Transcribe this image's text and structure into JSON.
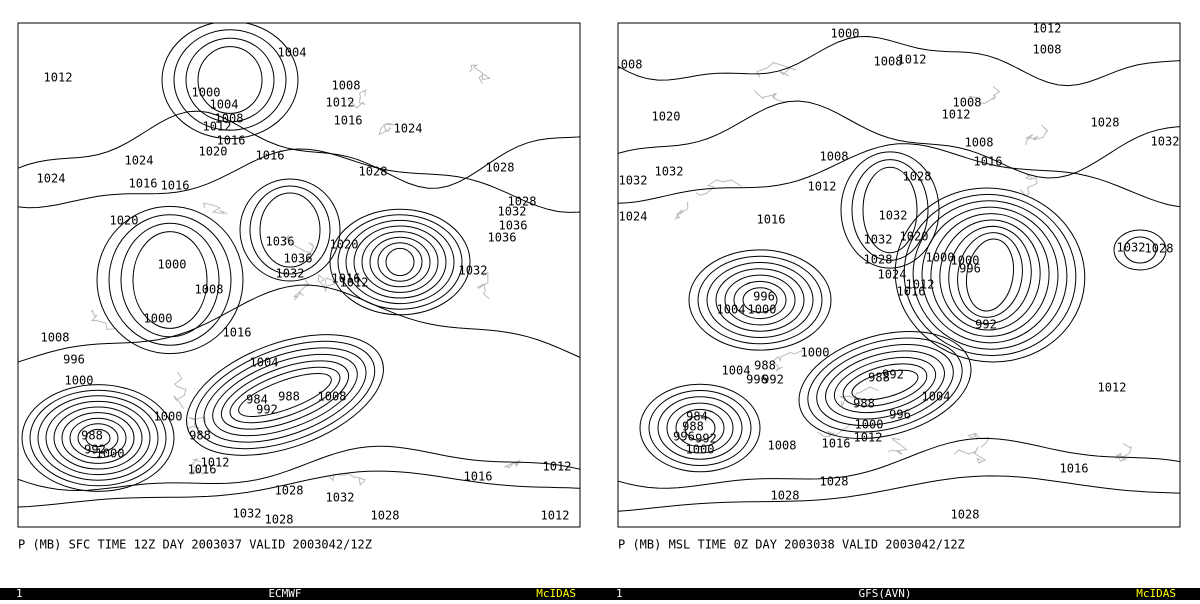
{
  "panels": [
    {
      "caption": "P (MB) SFC TIME 12Z DAY 2003037 VALID 2003042/12Z",
      "status_bar": {
        "frame": "1",
        "model": "ECMWF",
        "brand": "McIDAS"
      },
      "contour_labels": [
        1004,
        1012,
        1000,
        1008,
        1004,
        1012,
        1008,
        1012,
        1016,
        1016,
        1024,
        1020,
        1016,
        1024,
        1028,
        1028,
        1024,
        1016,
        1016,
        1028,
        1032,
        1020,
        1036,
        1036,
        1036,
        1020,
        1036,
        1000,
        1032,
        1032,
        1016,
        1012,
        1008,
        1000,
        1016,
        1008,
        1004,
        996,
        1000,
        988,
        984,
        1008,
        992,
        1000,
        988,
        988,
        992,
        1000,
        1012,
        1016,
        1012,
        1016,
        1028,
        1032,
        1032,
        1028,
        1028,
        1012
      ]
    },
    {
      "caption": "P (MB) MSL TIME 0Z DAY 2003038 VALID 2003042/12Z",
      "status_bar": {
        "frame": "1",
        "model": "GFS(AVN)",
        "brand": "McIDAS"
      },
      "contour_labels": [
        1000,
        1012,
        1008,
        1008,
        1008,
        1012,
        1008,
        1012,
        1020,
        1028,
        1008,
        1032,
        1008,
        1016,
        1032,
        1028,
        1032,
        1012,
        1024,
        1016,
        1032,
        1020,
        1032,
        1032,
        1028,
        1028,
        1000,
        1000,
        996,
        1024,
        1012,
        1016,
        996,
        1004,
        1000,
        992,
        1000,
        1004,
        988,
        996,
        992,
        988,
        992,
        1004,
        988,
        996,
        1000,
        1012,
        984,
        988,
        996,
        992,
        1012,
        1000,
        1008,
        1016,
        1016,
        1028,
        1028,
        1028
      ]
    }
  ]
}
